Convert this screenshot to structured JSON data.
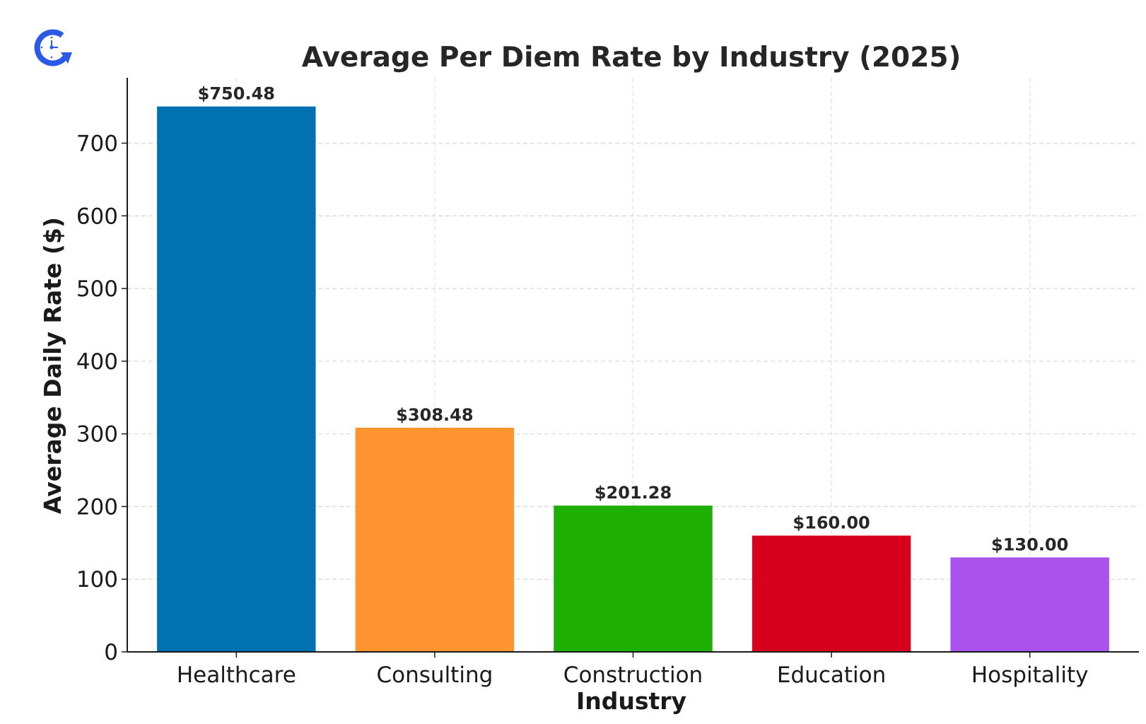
{
  "brand": {
    "logo_icon": "clock-refresh-icon",
    "logo_color": "#2b5be6"
  },
  "chart_data": {
    "type": "bar",
    "title": "Average Per Diem Rate by Industry (2025)",
    "xlabel": "Industry",
    "ylabel": "Average Daily Rate ($)",
    "categories": [
      "Healthcare",
      "Consulting",
      "Construction",
      "Education",
      "Hospitality"
    ],
    "values": [
      750.48,
      308.48,
      201.28,
      160.0,
      130.0
    ],
    "value_labels": [
      "$750.48",
      "$308.48",
      "$201.28",
      "$160.00",
      "$130.00"
    ],
    "colors": [
      "#0072b2",
      "#fd9430",
      "#1daf04",
      "#d6001c",
      "#a952ec"
    ],
    "ylim": [
      0,
      790
    ],
    "yticks": [
      0,
      100,
      200,
      300,
      400,
      500,
      600,
      700
    ],
    "grid": true,
    "legend": "none"
  }
}
